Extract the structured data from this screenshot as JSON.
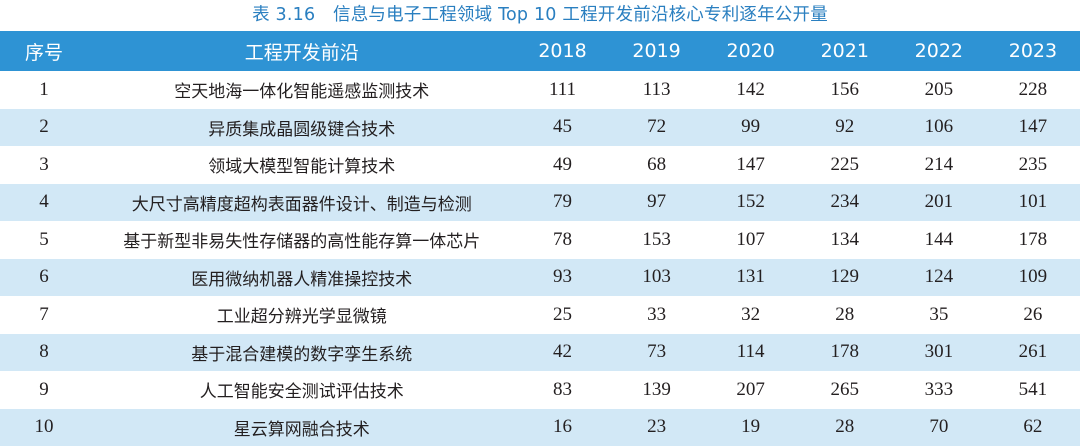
{
  "caption": "表 3.16　信息与电子工程领域 Top 10 工程开发前沿核心专利逐年公开量",
  "header": {
    "index": "序号",
    "name": "工程开发前沿",
    "years": [
      "2018",
      "2019",
      "2020",
      "2021",
      "2022",
      "2023"
    ]
  },
  "rows": [
    {
      "index": "1",
      "name": "空天地海一体化智能遥感监测技术",
      "values": [
        "111",
        "113",
        "142",
        "156",
        "205",
        "228"
      ]
    },
    {
      "index": "2",
      "name": "异质集成晶圆级键合技术",
      "values": [
        "45",
        "72",
        "99",
        "92",
        "106",
        "147"
      ]
    },
    {
      "index": "3",
      "name": "领域大模型智能计算技术",
      "values": [
        "49",
        "68",
        "147",
        "225",
        "214",
        "235"
      ]
    },
    {
      "index": "4",
      "name": "大尺寸高精度超构表面器件设计、制造与检测",
      "values": [
        "79",
        "97",
        "152",
        "234",
        "201",
        "101"
      ]
    },
    {
      "index": "5",
      "name": "基于新型非易失性存储器的高性能存算一体芯片",
      "values": [
        "78",
        "153",
        "107",
        "134",
        "144",
        "178"
      ]
    },
    {
      "index": "6",
      "name": "医用微纳机器人精准操控技术",
      "values": [
        "93",
        "103",
        "131",
        "129",
        "124",
        "109"
      ]
    },
    {
      "index": "7",
      "name": "工业超分辨光学显微镜",
      "values": [
        "25",
        "33",
        "32",
        "28",
        "35",
        "26"
      ]
    },
    {
      "index": "8",
      "name": "基于混合建模的数字孪生系统",
      "values": [
        "42",
        "73",
        "114",
        "178",
        "301",
        "261"
      ]
    },
    {
      "index": "9",
      "name": "人工智能安全测试评估技术",
      "values": [
        "83",
        "139",
        "207",
        "265",
        "333",
        "541"
      ]
    },
    {
      "index": "10",
      "name": "星云算网融合技术",
      "values": [
        "16",
        "23",
        "19",
        "28",
        "70",
        "62"
      ]
    }
  ]
}
